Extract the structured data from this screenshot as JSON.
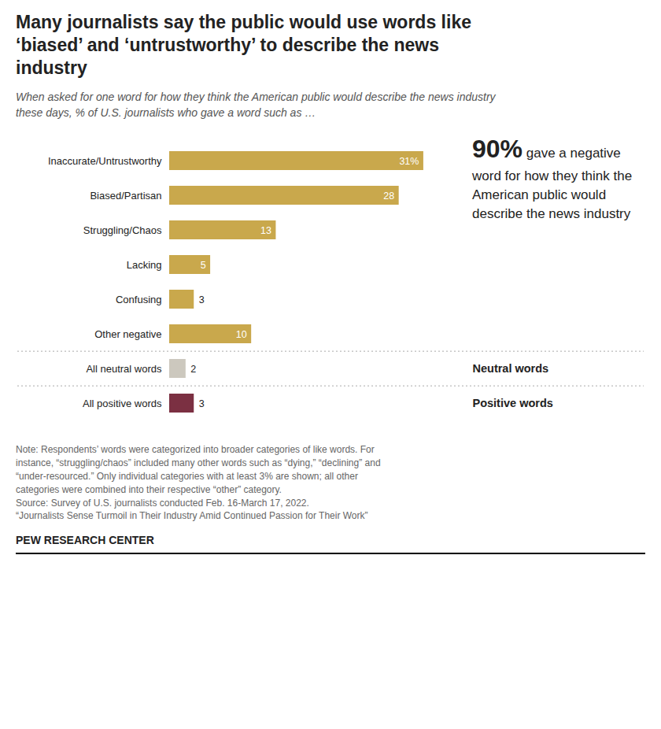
{
  "chart_data": {
    "type": "bar",
    "orientation": "horizontal",
    "title": "Many journalists say the public would use words like\n‘biased’ and ‘untrustworthy’ to describe the news\nindustry",
    "subtitle": "When asked for one word for how they think the American public would describe the news industry these days, % of U.S. journalists who gave a word such as …",
    "categories": [
      "Inaccurate/Untrustworthy",
      "Biased/Partisan",
      "Struggling/Chaos",
      "Lacking",
      "Confusing",
      "Other negative",
      "All neutral words",
      "All positive words"
    ],
    "values": [
      31,
      28,
      13,
      5,
      3,
      10,
      2,
      3
    ],
    "value_labels": [
      "31%",
      "28",
      "13",
      "5",
      "3",
      "10",
      "2",
      "3"
    ],
    "colors": [
      "#c9a84c",
      "#c9a84c",
      "#c9a84c",
      "#c9a84c",
      "#c9a84c",
      "#c9a84c",
      "#ccc8be",
      "#7b3042"
    ],
    "xlim": [
      0,
      36
    ],
    "tick_labels": "y",
    "grid": false,
    "data_labels": true,
    "annotations": [
      "90% gave a negative word for how they think the American public would describe the news industry"
    ],
    "group_labels": [
      {
        "label": "Neutral words",
        "category": "All neutral words"
      },
      {
        "label": "Positive words",
        "category": "All positive words"
      }
    ],
    "note": "Note: Respondents’ words were categorized into broader categories of like words. For\ninstance, “struggling/chaos” included many other words such as “dying,” “declining” and\n“under-resourced.” Only individual categories with at least 3% are shown; all other\ncategories were combined into their respective “other” category.\nSource: Survey of U.S. journalists conducted Feb. 16-March 17, 2022.\n“Journalists Sense Turmoil in Their Industry Amid Continued Passion for Their Work”",
    "footer": "PEW RESEARCH CENTER"
  }
}
